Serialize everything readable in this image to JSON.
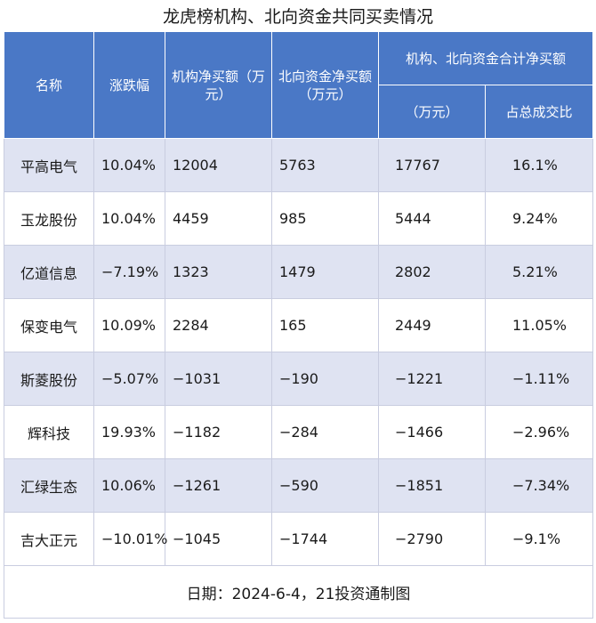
{
  "chart_data": {
    "type": "table",
    "title": "龙虎榜机构、北向资金共同买卖情况",
    "headers": {
      "name": "名称",
      "change": "涨跌幅",
      "inst": "机构净买额（万元）",
      "north": "北向资金净买额（万元）",
      "combined_group": "机构、北向资金合计净买额",
      "combined_value": "（万元）",
      "combined_ratio": "占总成交比"
    },
    "rows": [
      {
        "name": "平高电气",
        "change": "10.04%",
        "inst": "12004",
        "north": "5763",
        "total": "17767",
        "ratio": "16.1%"
      },
      {
        "name": "玉龙股份",
        "change": "10.04%",
        "inst": "4459",
        "north": "985",
        "total": "5444",
        "ratio": "9.24%"
      },
      {
        "name": "亿道信息",
        "change": "−7.19%",
        "inst": "1323",
        "north": "1479",
        "total": "2802",
        "ratio": "5.21%"
      },
      {
        "name": "保变电气",
        "change": "10.09%",
        "inst": "2284",
        "north": "165",
        "total": "2449",
        "ratio": "11.05%"
      },
      {
        "name": "斯菱股份",
        "change": "−5.07%",
        "inst": "−1031",
        "north": "−190",
        "total": "−1221",
        "ratio": "−1.11%"
      },
      {
        "name": "辉科技",
        "change": "19.93%",
        "inst": "−1182",
        "north": "−284",
        "total": "−1466",
        "ratio": "−2.96%"
      },
      {
        "name": "汇绿生态",
        "change": "10.06%",
        "inst": "−1261",
        "north": "−590",
        "total": "−1851",
        "ratio": "−7.34%"
      },
      {
        "name": "吉大正元",
        "change": "−10.01%",
        "inst": "−1045",
        "north": "−1744",
        "total": "−2790",
        "ratio": "−9.1%"
      }
    ],
    "footer": "日期：2024-6-4，21投资通制图"
  },
  "colors": {
    "header_bg": "#4a78c6",
    "stripe": "#dfe3f2"
  }
}
